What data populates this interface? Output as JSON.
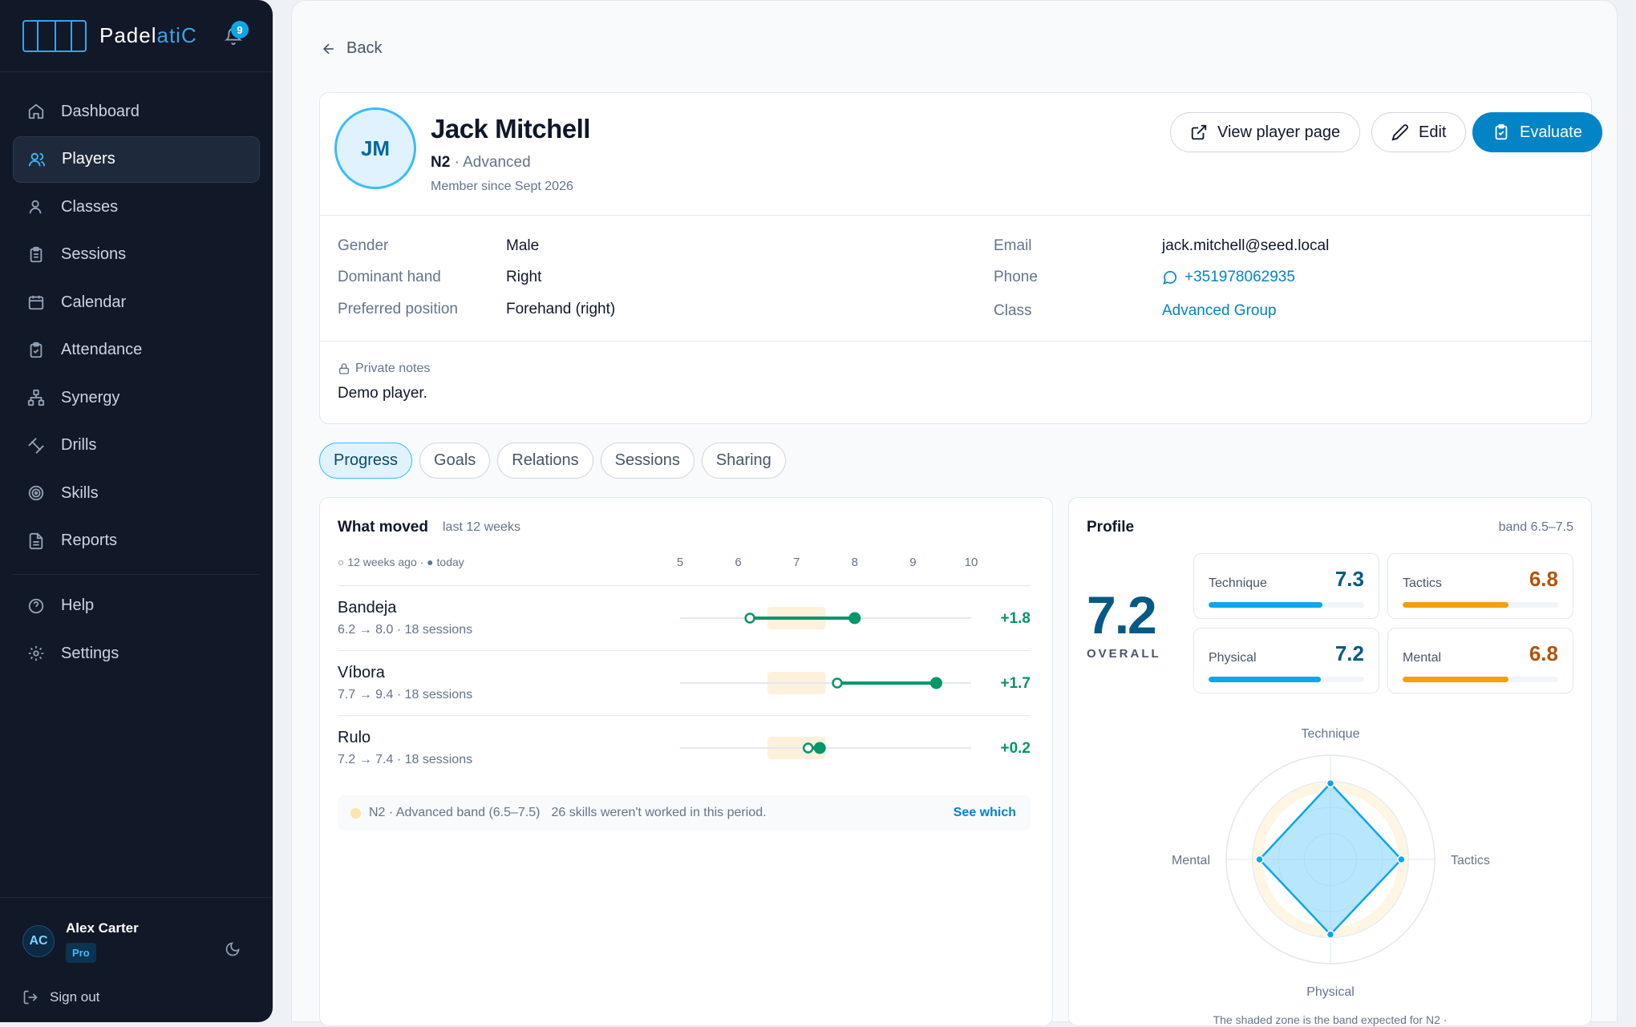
{
  "app": {
    "name_main": "Padel",
    "name_accent": "atiC",
    "notifications": "9"
  },
  "nav": [
    {
      "label": "Dashboard",
      "icon": "home-icon"
    },
    {
      "label": "Players",
      "icon": "users-icon"
    },
    {
      "label": "Classes",
      "icon": "user-icon"
    },
    {
      "label": "Sessions",
      "icon": "clipboard-icon"
    },
    {
      "label": "Calendar",
      "icon": "calendar-icon"
    },
    {
      "label": "Attendance",
      "icon": "clipboard-check-icon"
    },
    {
      "label": "Synergy",
      "icon": "network-icon"
    },
    {
      "label": "Drills",
      "icon": "dumbbell-icon"
    },
    {
      "label": "Skills",
      "icon": "target-icon"
    },
    {
      "label": "Reports",
      "icon": "file-icon"
    }
  ],
  "nav_bottom": [
    {
      "label": "Help",
      "icon": "help-icon"
    },
    {
      "label": "Settings",
      "icon": "gear-icon"
    }
  ],
  "user": {
    "initials": "AC",
    "name": "Alex Carter",
    "plan": "Pro",
    "sign_out": "Sign out"
  },
  "back_label": "Back",
  "player": {
    "initials": "JM",
    "name": "Jack Mitchell",
    "level_code": "N2",
    "level_name": " · Advanced",
    "member_since": "Member since Sept 2026",
    "actions": {
      "view": "View player page",
      "edit": "Edit",
      "evaluate": "Evaluate"
    },
    "info": {
      "gender_label": "Gender",
      "gender": "Male",
      "hand_label": "Dominant hand",
      "hand": "Right",
      "position_label": "Preferred position",
      "position": "Forehand (right)",
      "email_label": "Email",
      "email": "jack.mitchell@seed.local",
      "phone_label": "Phone",
      "phone": "+351978062935",
      "class_label": "Class",
      "class": "Advanced Group"
    },
    "notes_label": "Private notes",
    "notes": "Demo player."
  },
  "tabs": [
    "Progress",
    "Goals",
    "Relations",
    "Sessions",
    "Sharing"
  ],
  "what_moved": {
    "title": "What moved",
    "subtitle": "last 12 weeks",
    "legend": "○ 12 weeks ago · ● today",
    "ticks": [
      "5",
      "6",
      "7",
      "8",
      "9",
      "10"
    ],
    "scale": [
      5,
      10
    ],
    "band": [
      6.5,
      7.5
    ],
    "rows": [
      {
        "name": "Bandeja",
        "from": 6.2,
        "to": 8.0,
        "sub": "6.2 → 8.0 · 18 sessions",
        "delta": "+1.8"
      },
      {
        "name": "Víbora",
        "from": 7.7,
        "to": 9.4,
        "sub": "7.7 → 9.4 · 18 sessions",
        "delta": "+1.7"
      },
      {
        "name": "Rulo",
        "from": 7.2,
        "to": 7.4,
        "sub": "7.2 → 7.4 · 18 sessions",
        "delta": "+0.2"
      }
    ],
    "band_note": "N2 · Advanced band (6.5–7.5)",
    "unworked_note": "26 skills weren't worked in this period.",
    "see_which": "See which"
  },
  "profile": {
    "title": "Profile",
    "band": "band 6.5–7.5",
    "overall": "7.2",
    "overall_label": "OVERALL",
    "skills": [
      {
        "name": "Technique",
        "value": "7.3",
        "fill": 0.73,
        "color": "#0ea5e9",
        "text_color": "#075985"
      },
      {
        "name": "Tactics",
        "value": "6.8",
        "fill": 0.68,
        "color": "#f59e0b",
        "text_color": "#b45309"
      },
      {
        "name": "Physical",
        "value": "7.2",
        "fill": 0.72,
        "color": "#0ea5e9",
        "text_color": "#075985"
      },
      {
        "name": "Mental",
        "value": "6.8",
        "fill": 0.68,
        "color": "#f59e0b",
        "text_color": "#b45309"
      }
    ],
    "radar": {
      "axes": [
        "Technique",
        "Tactics",
        "Physical",
        "Mental"
      ],
      "values": [
        7.3,
        6.8,
        7.2,
        6.8
      ],
      "band": [
        6.5,
        7.5
      ],
      "max": 10
    },
    "caption": "The shaded zone is the band expected for N2 ·"
  },
  "colors": {
    "accent": "#0284c7",
    "positive": "#059669",
    "band": "#fde3ae",
    "sidebar": "#111827"
  }
}
